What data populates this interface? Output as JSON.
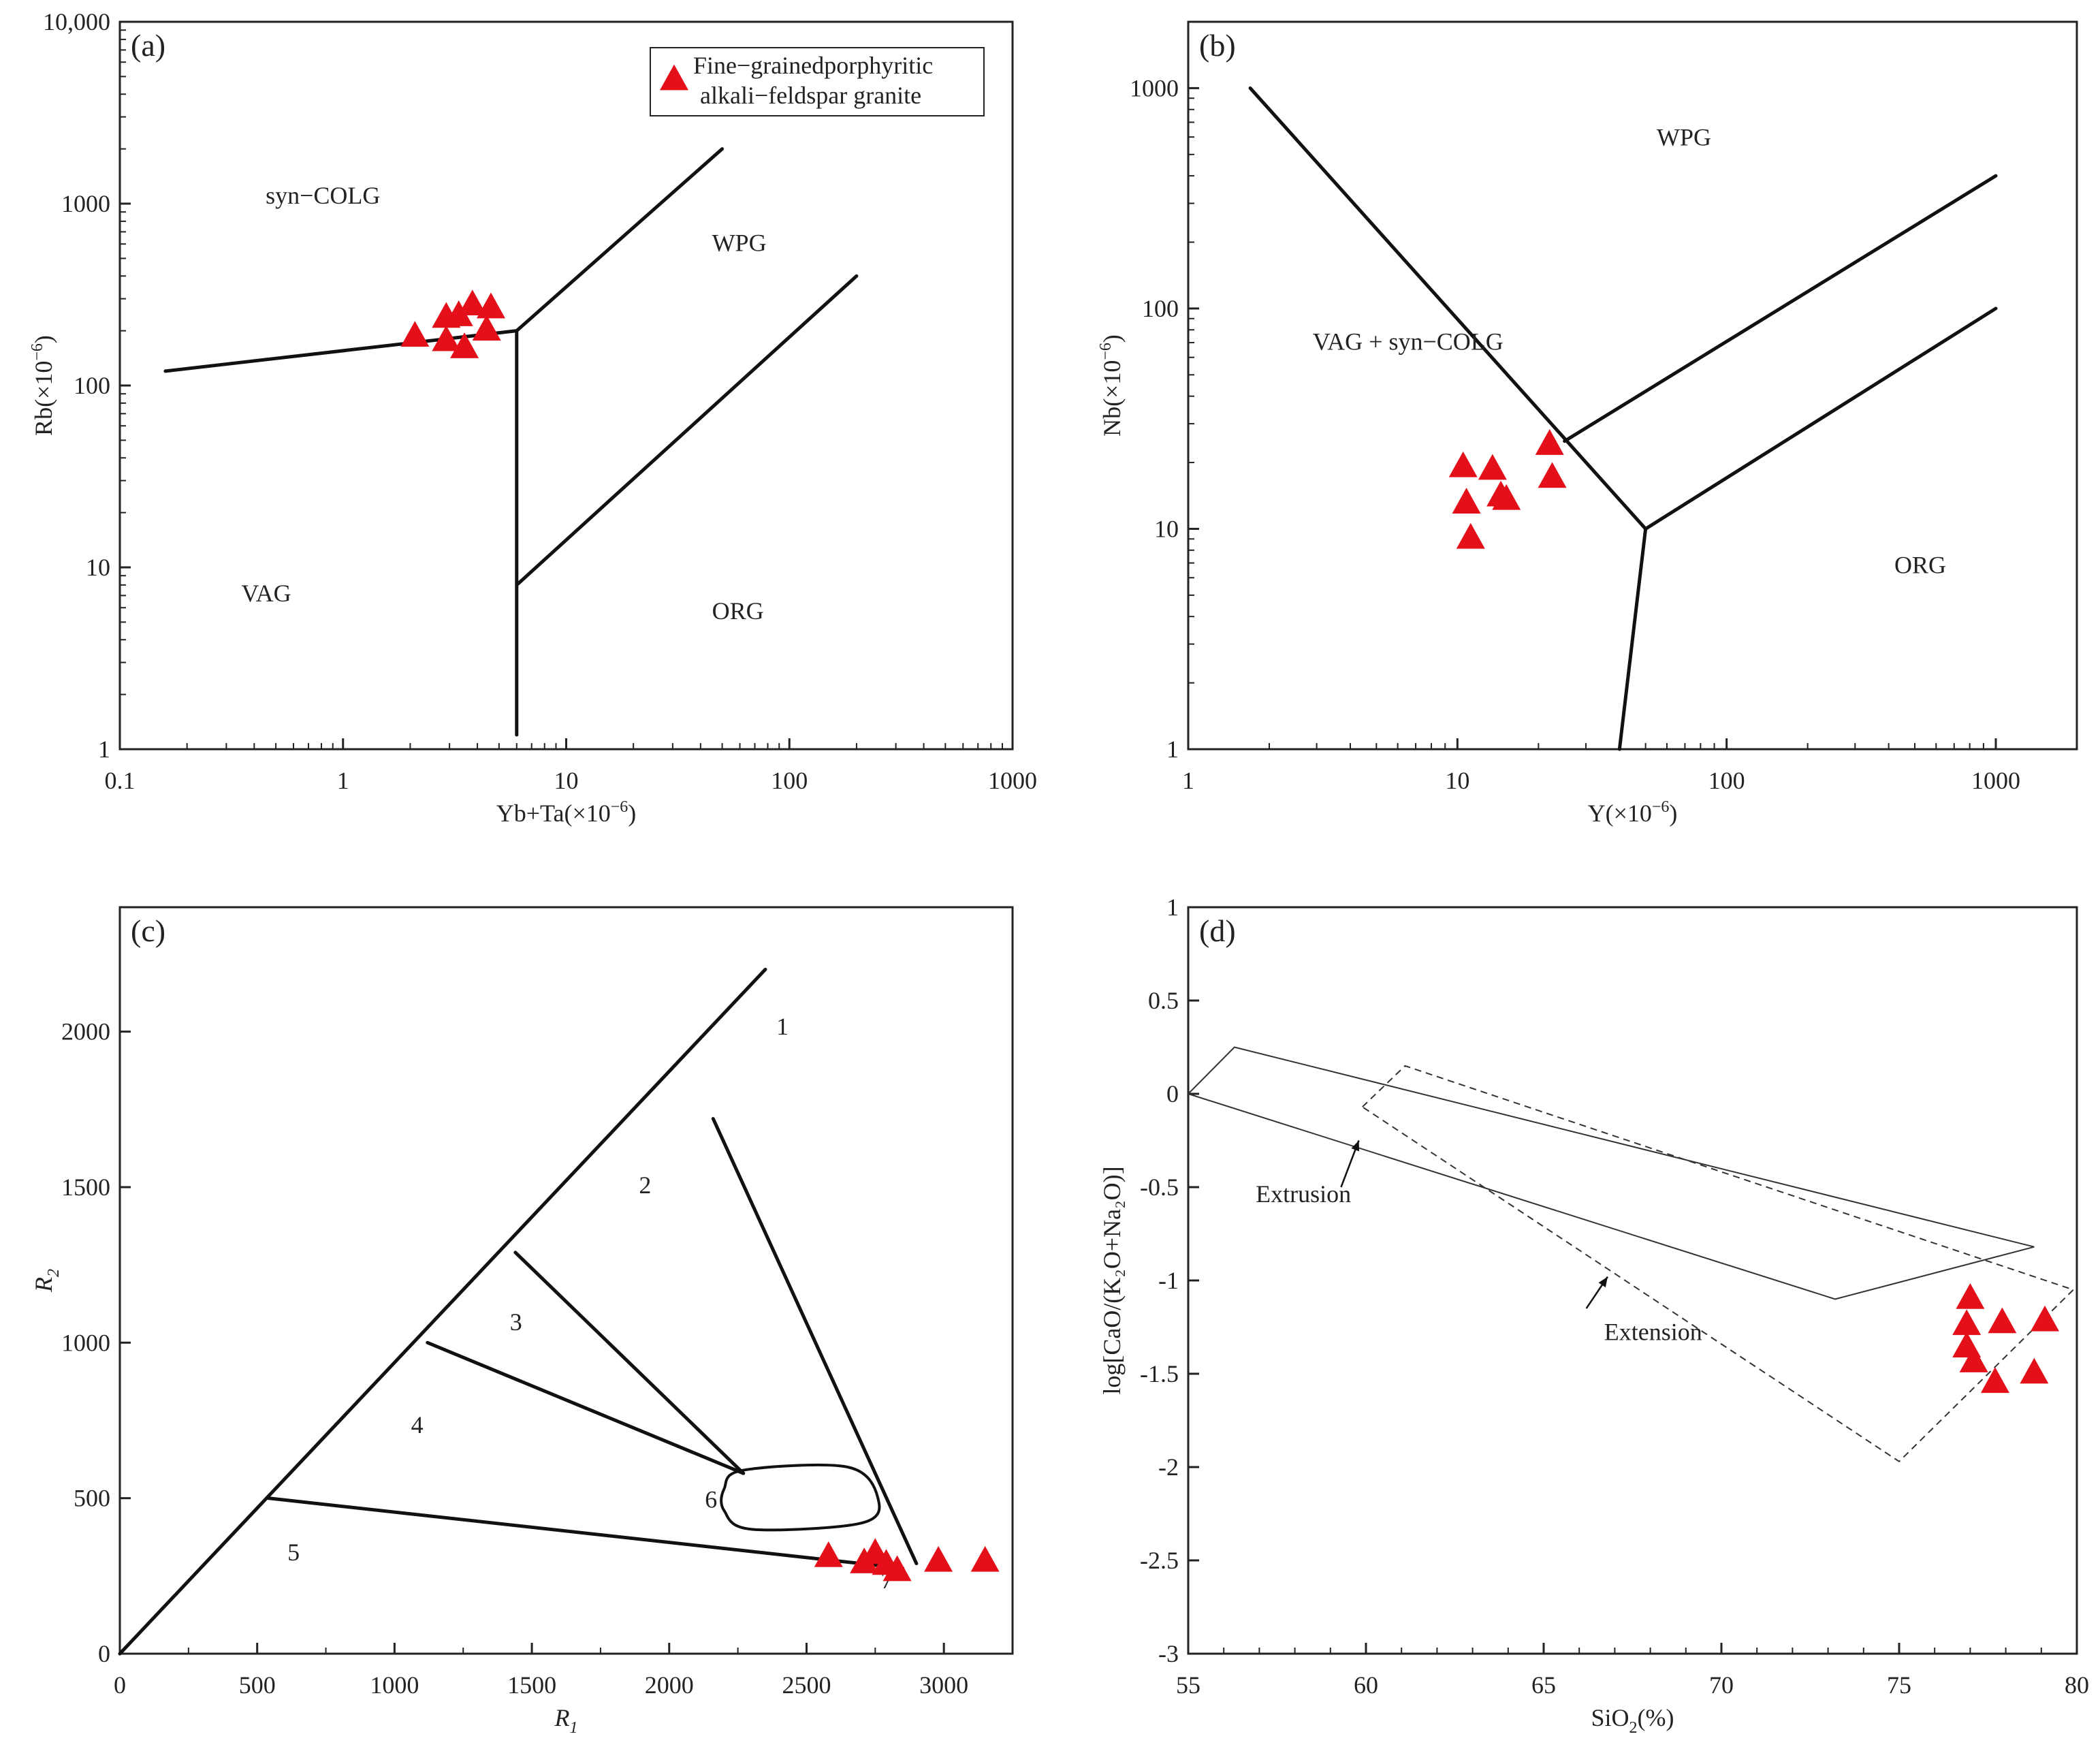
{
  "figure": {
    "colors": {
      "marker": "#e3101a",
      "line": "#111111",
      "frame": "#222222"
    },
    "marker_shape": "triangle"
  },
  "chart_data": [
    {
      "panel": "(a)",
      "type": "scatter",
      "xscale": "log",
      "yscale": "log",
      "xlim": [
        0.1,
        1000
      ],
      "ylim": [
        1,
        10000
      ],
      "xlabel": "Yb+Ta(×10",
      "xlabel_sup": "−6",
      "xlabel_tail": ")",
      "ylabel": "Rb(×10",
      "ylabel_sup": "−6",
      "ylabel_tail": ")",
      "xticks": [
        0.1,
        1,
        10,
        100,
        1000
      ],
      "xtick_labels": [
        "0.1",
        "1",
        "10",
        "100",
        "1000"
      ],
      "yticks": [
        1,
        10,
        100,
        1000,
        10000
      ],
      "ytick_labels": [
        "1",
        "10",
        "100",
        "1000",
        "10,000"
      ],
      "legend": {
        "entries": [
          "Fine−grainedporphyritic",
          "alkali−feldspar granite"
        ],
        "placement": "top-right"
      },
      "zones": [
        {
          "label": "syn−COLG",
          "x": 0.45,
          "y": 1000
        },
        {
          "label": "WPG",
          "x": 45,
          "y": 550
        },
        {
          "label": "VAG",
          "x": 0.35,
          "y": 6.5
        },
        {
          "label": "ORG",
          "x": 45,
          "y": 5.2
        }
      ],
      "boundaries": [
        [
          [
            0.16,
            120
          ],
          [
            6,
            200
          ]
        ],
        [
          [
            6,
            200
          ],
          [
            50,
            2000
          ]
        ],
        [
          [
            6,
            200
          ],
          [
            6,
            1.2
          ]
        ],
        [
          [
            6,
            8
          ],
          [
            200,
            400
          ]
        ]
      ],
      "series": [
        {
          "name": "Fine−grainedporphyritic alkali−feldspar granite",
          "x": [
            2.1,
            2.9,
            3.3,
            3.8,
            4.6,
            2.9,
            3.5,
            4.4
          ],
          "y": [
            185,
            235,
            240,
            275,
            265,
            175,
            160,
            200
          ]
        }
      ]
    },
    {
      "panel": "(b)",
      "type": "scatter",
      "xscale": "log",
      "yscale": "log",
      "xlim": [
        1,
        2000
      ],
      "ylim": [
        1,
        2000
      ],
      "xlabel": "Y(×10",
      "xlabel_sup": "−6",
      "xlabel_tail": ")",
      "ylabel": "Nb(×10",
      "ylabel_sup": "−6",
      "ylabel_tail": ")",
      "xticks": [
        1,
        10,
        100,
        1000
      ],
      "xtick_labels": [
        "1",
        "10",
        "100",
        "1000"
      ],
      "yticks": [
        1,
        10,
        100,
        1000
      ],
      "ytick_labels": [
        "1",
        "10",
        "100",
        "1000"
      ],
      "zones": [
        {
          "label": "WPG",
          "x": 55,
          "y": 550
        },
        {
          "label": "VAG + syn−COLG",
          "x": 2.9,
          "y": 65
        },
        {
          "label": "ORG",
          "x": 420,
          "y": 6.3
        }
      ],
      "boundaries": [
        [
          [
            1.7,
            1000
          ],
          [
            50,
            10
          ]
        ],
        [
          [
            25,
            25
          ],
          [
            1000,
            400
          ]
        ],
        [
          [
            50,
            10
          ],
          [
            1000,
            100
          ]
        ],
        [
          [
            50,
            10
          ],
          [
            40,
            1
          ]
        ]
      ],
      "series": [
        {
          "name": "Fine−grainedporphyritic alkali−feldspar granite",
          "x": [
            10.5,
            13.5,
            22,
            10.8,
            14.5,
            15.2,
            22.5,
            11.2
          ],
          "y": [
            19,
            18.5,
            24,
            13,
            14,
            13.5,
            17,
            9
          ]
        }
      ]
    },
    {
      "panel": "(c)",
      "type": "scatter",
      "xscale": "linear",
      "yscale": "linear",
      "xlim": [
        0,
        3250
      ],
      "ylim": [
        0,
        2400
      ],
      "xlabel": "R",
      "xlabel_sub": "1",
      "ylabel": "R",
      "ylabel_sub": "2",
      "xticks": [
        0,
        500,
        1000,
        1500,
        2000,
        2500,
        3000
      ],
      "xtick_labels": [
        "0",
        "500",
        "1000",
        "1500",
        "2000",
        "2500",
        "3000"
      ],
      "yticks": [
        0,
        500,
        1000,
        1500,
        2000
      ],
      "ytick_labels": [
        "0",
        "500",
        "1000",
        "1500",
        "2000"
      ],
      "zones": [
        {
          "label": "1",
          "x": 2390,
          "y": 1990
        },
        {
          "label": "2",
          "x": 1890,
          "y": 1480
        },
        {
          "label": "3",
          "x": 1420,
          "y": 1040
        },
        {
          "label": "4",
          "x": 1060,
          "y": 710
        },
        {
          "label": "5",
          "x": 610,
          "y": 300
        },
        {
          "label": "6",
          "x": 2130,
          "y": 470
        },
        {
          "label": "7",
          "x": 2770,
          "y": 210
        }
      ],
      "boundaries": [
        [
          [
            0,
            0
          ],
          [
            2350,
            2200
          ]
        ],
        [
          [
            2160,
            1720
          ],
          [
            2900,
            290
          ]
        ],
        [
          [
            1440,
            1290
          ],
          [
            2270,
            580
          ]
        ],
        [
          [
            1120,
            1000
          ],
          [
            2270,
            580
          ]
        ],
        [
          [
            540,
            500
          ],
          [
            2850,
            275
          ]
        ]
      ],
      "region6": [
        [
          2270,
          590
        ],
        [
          2650,
          600
        ],
        [
          2760,
          500
        ],
        [
          2700,
          420
        ],
        [
          2300,
          400
        ],
        [
          2200,
          460
        ],
        [
          2200,
          530
        ]
      ],
      "series": [
        {
          "name": "Fine−grainedporphyritic alkali−feldspar granite",
          "x": [
            2580,
            2750,
            2710,
            2790,
            2830,
            2980,
            3150
          ],
          "y": [
            310,
            320,
            290,
            285,
            265,
            295,
            295
          ]
        }
      ]
    },
    {
      "panel": "(d)",
      "type": "scatter",
      "xscale": "linear",
      "yscale": "linear",
      "xlim": [
        55,
        80
      ],
      "ylim": [
        -3,
        1
      ],
      "xlabel": "SiO",
      "xlabel_sub": "2",
      "xlabel_tail": "(%)",
      "ylabel": "log[CaO/(K₂O+Na₂O)]",
      "xticks": [
        55,
        60,
        65,
        70,
        75,
        80
      ],
      "xtick_labels": [
        "55",
        "60",
        "65",
        "70",
        "75",
        "80"
      ],
      "yticks": [
        1,
        0.5,
        0,
        -0.5,
        -1,
        -1.5,
        -2,
        -2.5,
        -3
      ],
      "ytick_labels": [
        "1",
        "0.5",
        "0",
        "-0.5",
        "-1",
        "-1.5",
        "-2",
        "-2.5",
        "-3"
      ],
      "annotations": [
        {
          "label": "Extrusion",
          "x": 56.9,
          "y": -0.58,
          "arrow_from": [
            59.3,
            -0.5
          ],
          "arrow_to": [
            59.8,
            -0.25
          ]
        },
        {
          "label": "Extension",
          "x": 66.7,
          "y": -1.32,
          "arrow_from": [
            66.2,
            -1.15
          ],
          "arrow_to": [
            66.8,
            -0.98
          ]
        }
      ],
      "extrusion_field": [
        [
          55,
          0
        ],
        [
          56.3,
          0.25
        ],
        [
          78.8,
          -0.82
        ],
        [
          73.2,
          -1.1
        ],
        [
          55,
          0
        ]
      ],
      "extension_field": [
        [
          59.9,
          -0.07
        ],
        [
          61.1,
          0.15
        ],
        [
          79.9,
          -1.05
        ],
        [
          75,
          -1.97
        ],
        [
          59.9,
          -0.07
        ]
      ],
      "series": [
        {
          "name": "Fine−grainedporphyritic alkali−feldspar granite",
          "x": [
            77.0,
            76.9,
            77.9,
            79.1,
            76.9,
            77.1,
            77.7,
            78.8
          ],
          "y": [
            -1.1,
            -1.24,
            -1.23,
            -1.22,
            -1.36,
            -1.44,
            -1.55,
            -1.5
          ]
        }
      ]
    }
  ]
}
